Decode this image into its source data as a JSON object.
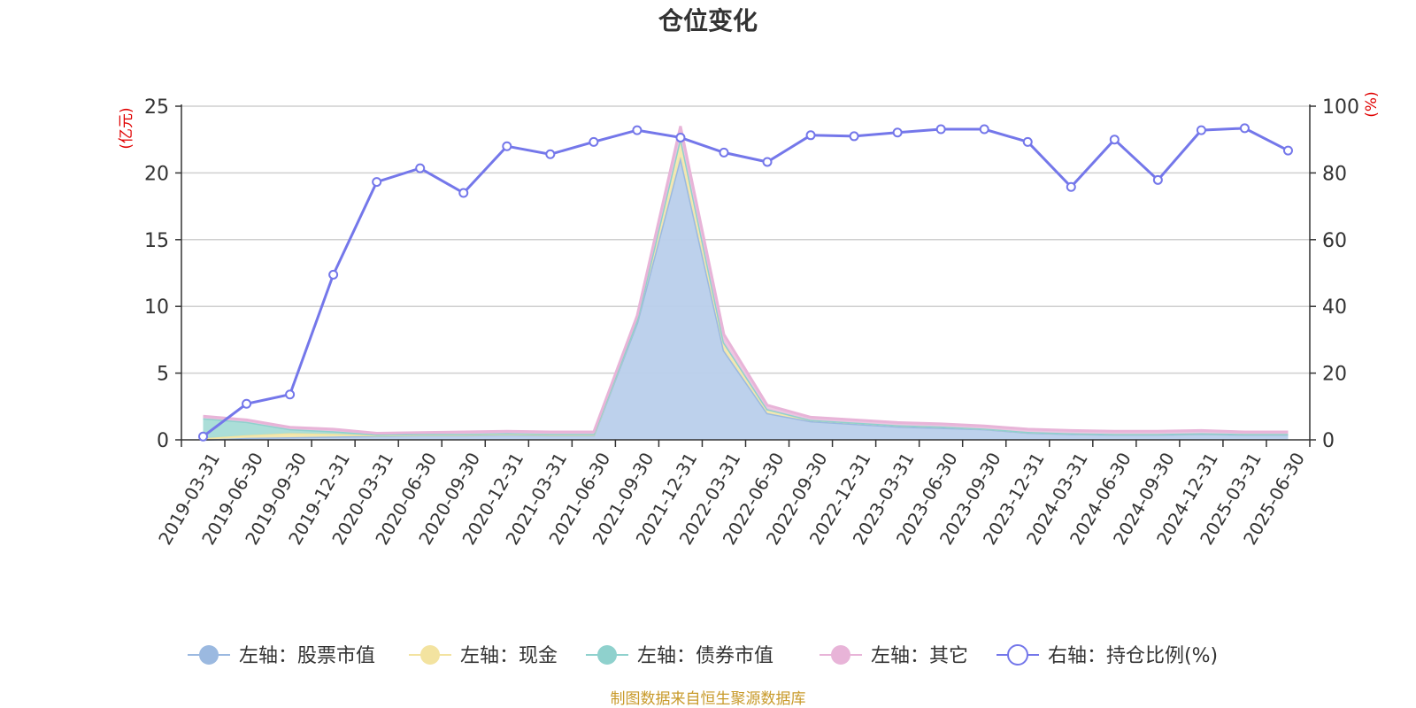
{
  "chart_data": {
    "type": "area",
    "title": "仓位变化",
    "left_unit": "(亿元)",
    "right_unit": "(%)",
    "left_ylim": [
      0,
      25
    ],
    "left_ticks": [
      0,
      5,
      10,
      15,
      20,
      25
    ],
    "right_ylim": [
      0,
      100
    ],
    "right_ticks": [
      0,
      20,
      40,
      60,
      80,
      100
    ],
    "grid": true,
    "legend_position": "bottom",
    "source": "制图数据来自恒生聚源数据库",
    "categories": [
      "2019-03-31",
      "2019-06-30",
      "2019-09-30",
      "2019-12-31",
      "2020-03-31",
      "2020-06-30",
      "2020-09-30",
      "2020-12-31",
      "2021-03-31",
      "2021-06-30",
      "2021-09-30",
      "2021-12-31",
      "2022-03-31",
      "2022-06-30",
      "2022-09-30",
      "2022-12-31",
      "2023-03-31",
      "2023-06-30",
      "2023-09-30",
      "2023-12-31",
      "2024-03-31",
      "2024-06-30",
      "2024-09-30",
      "2024-12-31",
      "2025-03-31",
      "2025-06-30"
    ],
    "series": [
      {
        "name": "左轴：股票市值",
        "axis": "left",
        "color": "#9bb9e0",
        "fill": "#b9cfeb",
        "values": [
          0.02,
          0.15,
          0.2,
          0.25,
          0.3,
          0.35,
          0.35,
          0.4,
          0.35,
          0.35,
          8.8,
          21.2,
          6.7,
          2.0,
          1.4,
          1.2,
          1.0,
          0.9,
          0.8,
          0.55,
          0.45,
          0.4,
          0.4,
          0.45,
          0.4,
          0.4
        ]
      },
      {
        "name": "左轴：现金",
        "axis": "left",
        "color": "#f3e3a0",
        "fill": "#f5e8ad",
        "values": [
          0.1,
          0.2,
          0.3,
          0.2,
          0.05,
          0.05,
          0.05,
          0.05,
          0.05,
          0.05,
          0.2,
          1.5,
          0.6,
          0.3,
          0.1,
          0.1,
          0.1,
          0.1,
          0.05,
          0.05,
          0.05,
          0.05,
          0.05,
          0.05,
          0.05,
          0.05
        ]
      },
      {
        "name": "左轴：债券市值",
        "axis": "left",
        "color": "#8fd1cd",
        "fill": "#a6dcd6",
        "values": [
          1.5,
          1.0,
          0.3,
          0.2,
          0.05,
          0.05,
          0.05,
          0.05,
          0.05,
          0.05,
          0,
          0,
          0,
          0,
          0,
          0,
          0,
          0,
          0,
          0,
          0,
          0,
          0,
          0,
          0,
          0
        ]
      },
      {
        "name": "左轴：其它",
        "axis": "left",
        "color": "#e8b4d8",
        "fill": "#eec4e0",
        "values": [
          0.15,
          0.15,
          0.15,
          0.15,
          0.1,
          0.1,
          0.15,
          0.15,
          0.15,
          0.15,
          0.3,
          0.8,
          0.6,
          0.3,
          0.2,
          0.2,
          0.2,
          0.2,
          0.2,
          0.2,
          0.2,
          0.2,
          0.2,
          0.2,
          0.15,
          0.15
        ]
      },
      {
        "name": "右轴：持仓比例(%)",
        "axis": "right",
        "color": "#7477ea",
        "values": [
          1,
          10.8,
          13.6,
          49.5,
          77.3,
          81.4,
          74,
          88,
          85.6,
          89.3,
          92.8,
          90.6,
          86.1,
          83.3,
          91.3,
          91,
          92.1,
          93.1,
          93.1,
          89.3,
          75.8,
          90,
          77.9,
          92.8,
          93.4,
          86.7
        ]
      }
    ]
  }
}
